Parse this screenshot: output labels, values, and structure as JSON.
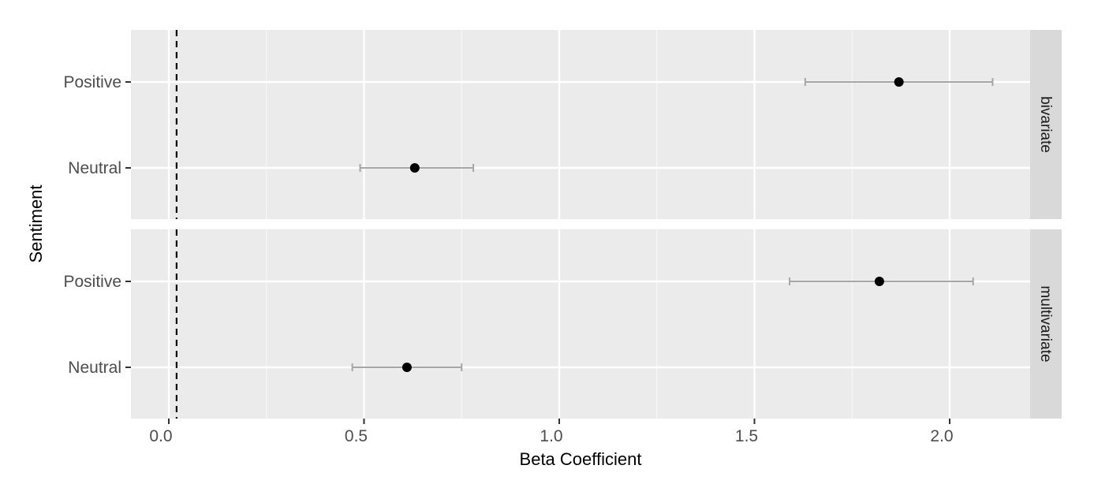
{
  "chart_data": {
    "type": "scatter",
    "subtype": "coefficient-plot-with-error-bars",
    "xlabel": "Beta Coefficient",
    "ylabel": "Sentiment",
    "xlim": [
      -0.1,
      2.25
    ],
    "x_ticks": [
      0.0,
      0.5,
      1.0,
      1.5,
      2.0
    ],
    "x_tick_labels": [
      "0.0",
      "0.5",
      "1.0",
      "1.5",
      "2.0"
    ],
    "categories": [
      "Positive",
      "Neutral"
    ],
    "reference_line": {
      "x": 0.02,
      "style": "dashed",
      "color": "#000000"
    },
    "grid": true,
    "facets": [
      {
        "label": "bivariate",
        "points": [
          {
            "category": "Positive",
            "estimate": 1.87,
            "lower": 1.63,
            "upper": 2.11
          },
          {
            "category": "Neutral",
            "estimate": 0.63,
            "lower": 0.49,
            "upper": 0.78
          }
        ]
      },
      {
        "label": "multivariate",
        "points": [
          {
            "category": "Positive",
            "estimate": 1.82,
            "lower": 1.59,
            "upper": 2.06
          },
          {
            "category": "Neutral",
            "estimate": 0.61,
            "lower": 0.47,
            "upper": 0.75
          }
        ]
      }
    ],
    "colors": {
      "panel_bg": "#ebebeb",
      "grid_major": "#ffffff",
      "strip_bg": "#d9d9d9",
      "point": "#000000",
      "errorbar": "#a6a6a6"
    }
  }
}
